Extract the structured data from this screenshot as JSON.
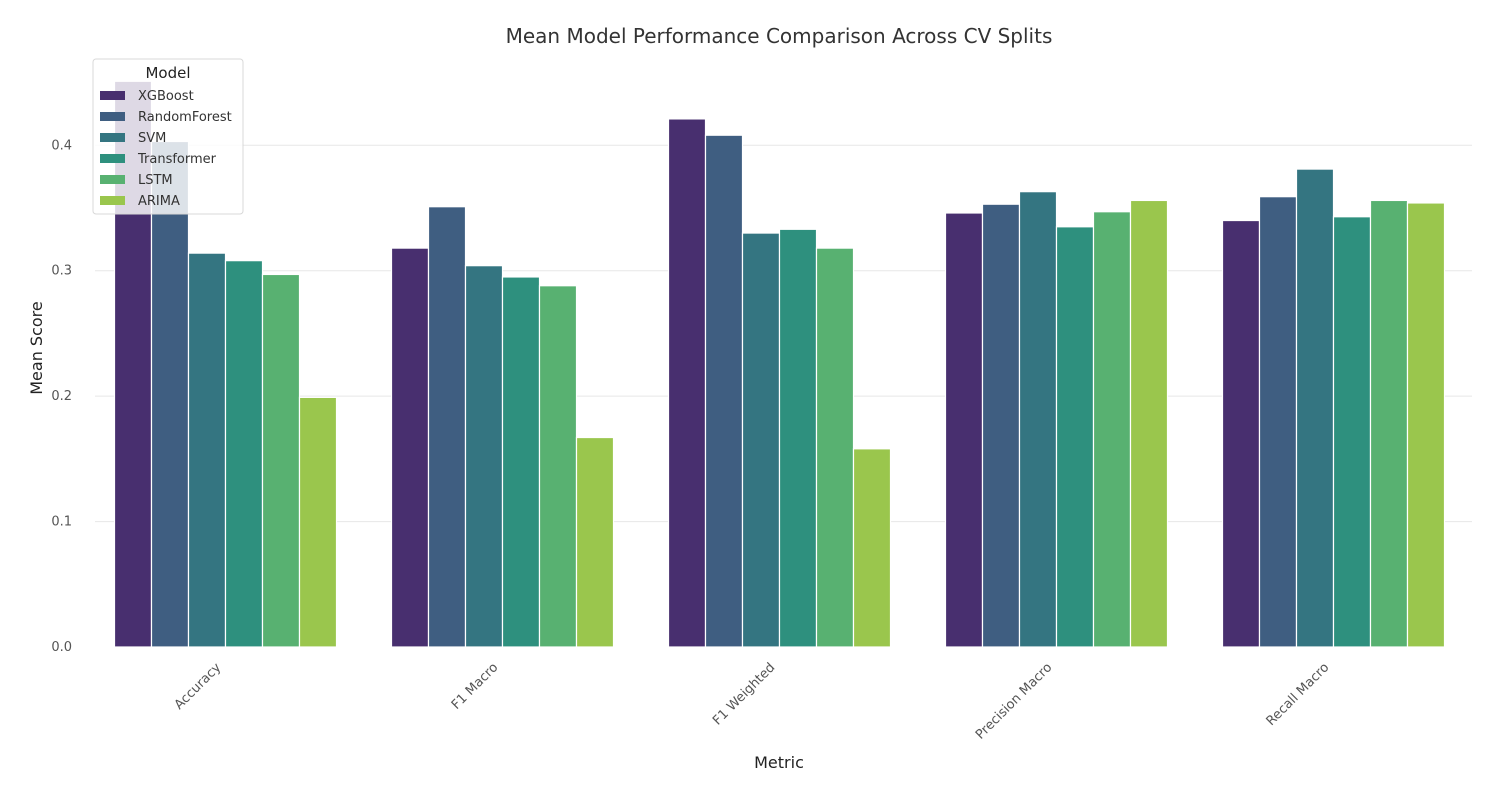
{
  "chart_data": {
    "type": "bar",
    "title": "Mean Model Performance Comparison Across CV Splits",
    "xlabel": "Metric",
    "ylabel": "Mean Score",
    "categories": [
      "Accuracy",
      "F1 Macro",
      "F1 Weighted",
      "Precision Macro",
      "Recall Macro"
    ],
    "series": [
      {
        "name": "XGBoost",
        "color": "#482f6f",
        "values": [
          0.451,
          0.318,
          0.421,
          0.346,
          0.34
        ]
      },
      {
        "name": "RandomForest",
        "color": "#3f5e81",
        "values": [
          0.403,
          0.351,
          0.408,
          0.353,
          0.359
        ]
      },
      {
        "name": "SVM",
        "color": "#347581",
        "values": [
          0.314,
          0.304,
          0.33,
          0.363,
          0.381
        ]
      },
      {
        "name": "Transformer",
        "color": "#2e907e",
        "values": [
          0.308,
          0.295,
          0.333,
          0.335,
          0.343
        ]
      },
      {
        "name": "LSTM",
        "color": "#58b171",
        "values": [
          0.297,
          0.288,
          0.318,
          0.347,
          0.356
        ]
      },
      {
        "name": "ARIMA",
        "color": "#9ac64d",
        "values": [
          0.199,
          0.167,
          0.158,
          0.356,
          0.354
        ]
      }
    ],
    "yticks": [
      "0.0",
      "0.1",
      "0.2",
      "0.3",
      "0.4"
    ],
    "ylim": [
      0,
      0.46
    ],
    "grid": true,
    "legend": {
      "title": "Model",
      "position": "top-left"
    }
  }
}
